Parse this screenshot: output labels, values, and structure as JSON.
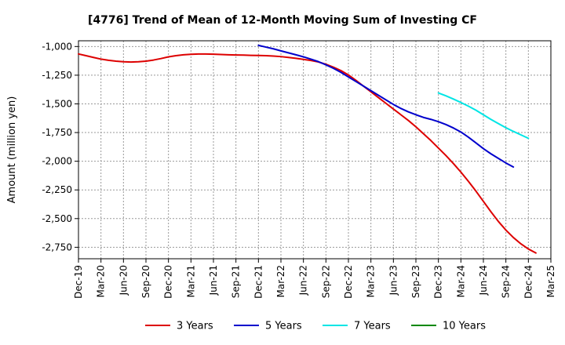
{
  "chart_data": {
    "type": "line",
    "title": "[4776]  Trend of Mean of 12-Month Moving Sum of Investing CF",
    "xlabel": "",
    "ylabel": "Amount (million yen)",
    "ylim": [
      -2850,
      -950
    ],
    "yticks": [
      -1000,
      -1250,
      -1500,
      -1750,
      -2000,
      -2250,
      -2500,
      -2750
    ],
    "ytick_labels": [
      "-1,000",
      "-1,250",
      "-1,500",
      "-1,750",
      "-2,000",
      "-2,250",
      "-2,500",
      "-2,750"
    ],
    "xtick_labels": [
      "Dec-19",
      "Mar-20",
      "Jun-20",
      "Sep-20",
      "Dec-20",
      "Mar-21",
      "Jun-21",
      "Sep-21",
      "Dec-21",
      "Mar-22",
      "Jun-22",
      "Sep-22",
      "Dec-22",
      "Mar-23",
      "Jun-23",
      "Sep-23",
      "Dec-23",
      "Mar-24",
      "Jun-24",
      "Sep-24",
      "Dec-24",
      "Mar-25"
    ],
    "series": [
      {
        "name": "3 Years",
        "color": "#dd0000",
        "start_index": 0,
        "values": [
          -1065,
          -1080,
          -1095,
          -1110,
          -1120,
          -1128,
          -1133,
          -1135,
          -1133,
          -1128,
          -1118,
          -1105,
          -1090,
          -1080,
          -1072,
          -1068,
          -1065,
          -1065,
          -1067,
          -1070,
          -1072,
          -1074,
          -1075,
          -1077,
          -1078,
          -1080,
          -1083,
          -1088,
          -1095,
          -1103,
          -1112,
          -1122,
          -1135,
          -1155,
          -1180,
          -1210,
          -1248,
          -1295,
          -1345,
          -1395,
          -1445,
          -1495,
          -1545,
          -1595,
          -1645,
          -1700,
          -1760,
          -1820,
          -1885,
          -1950,
          -2020,
          -2095,
          -2175,
          -2260,
          -2350,
          -2440,
          -2525,
          -2600,
          -2665,
          -2720,
          -2765,
          -2800
        ]
      },
      {
        "name": "5 Years",
        "color": "#0000cc",
        "start_index": 24,
        "values": [
          -990,
          -1005,
          -1020,
          -1038,
          -1055,
          -1072,
          -1090,
          -1110,
          -1132,
          -1160,
          -1190,
          -1225,
          -1265,
          -1305,
          -1345,
          -1385,
          -1425,
          -1465,
          -1505,
          -1540,
          -1570,
          -1595,
          -1618,
          -1635,
          -1655,
          -1680,
          -1710,
          -1745,
          -1790,
          -1840,
          -1890,
          -1935,
          -1975,
          -2015,
          -2050
        ]
      },
      {
        "name": "7 Years",
        "color": "#00e5e5",
        "start_index": 48,
        "values": [
          -1405,
          -1430,
          -1458,
          -1488,
          -1520,
          -1555,
          -1595,
          -1635,
          -1672,
          -1708,
          -1740,
          -1770,
          -1800
        ]
      },
      {
        "name": "10 Years",
        "color": "#008800",
        "start_index": 0,
        "values": []
      }
    ],
    "grid": true,
    "legend_position": "bottom"
  }
}
